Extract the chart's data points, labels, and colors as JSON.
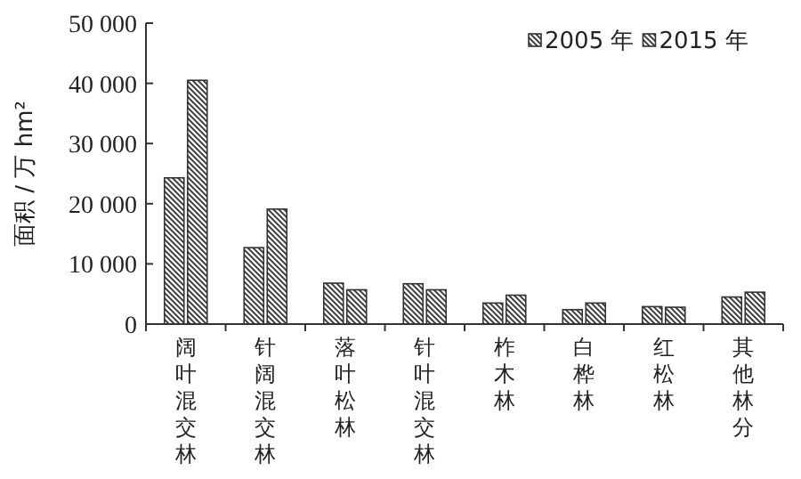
{
  "chart_data": {
    "type": "bar",
    "categories": [
      "阔叶混交林",
      "针阔混交林",
      "落叶松林",
      "针叶混交林",
      "柞木林",
      "白桦林",
      "红松林",
      "其他林分"
    ],
    "series": [
      {
        "name": "2005 年",
        "color": "#333333",
        "values": [
          24300,
          12700,
          6800,
          6700,
          3500,
          2400,
          2900,
          4500
        ]
      },
      {
        "name": "2015 年",
        "color": "#333333",
        "values": [
          40500,
          19100,
          5700,
          5700,
          4800,
          3500,
          2800,
          5300
        ]
      }
    ],
    "ylabel": "面积 / 万 hm²",
    "ylim": [
      0,
      50000
    ],
    "yticks": [
      0,
      {
        "value": 10000,
        "label": "10 000"
      },
      {
        "value": 20000,
        "label": "20 000"
      },
      {
        "value": 30000,
        "label": "30 000"
      },
      {
        "value": 40000,
        "label": "40 000"
      },
      {
        "value": 50000,
        "label": "50 000"
      }
    ],
    "legend": "top right",
    "grid": false
  }
}
